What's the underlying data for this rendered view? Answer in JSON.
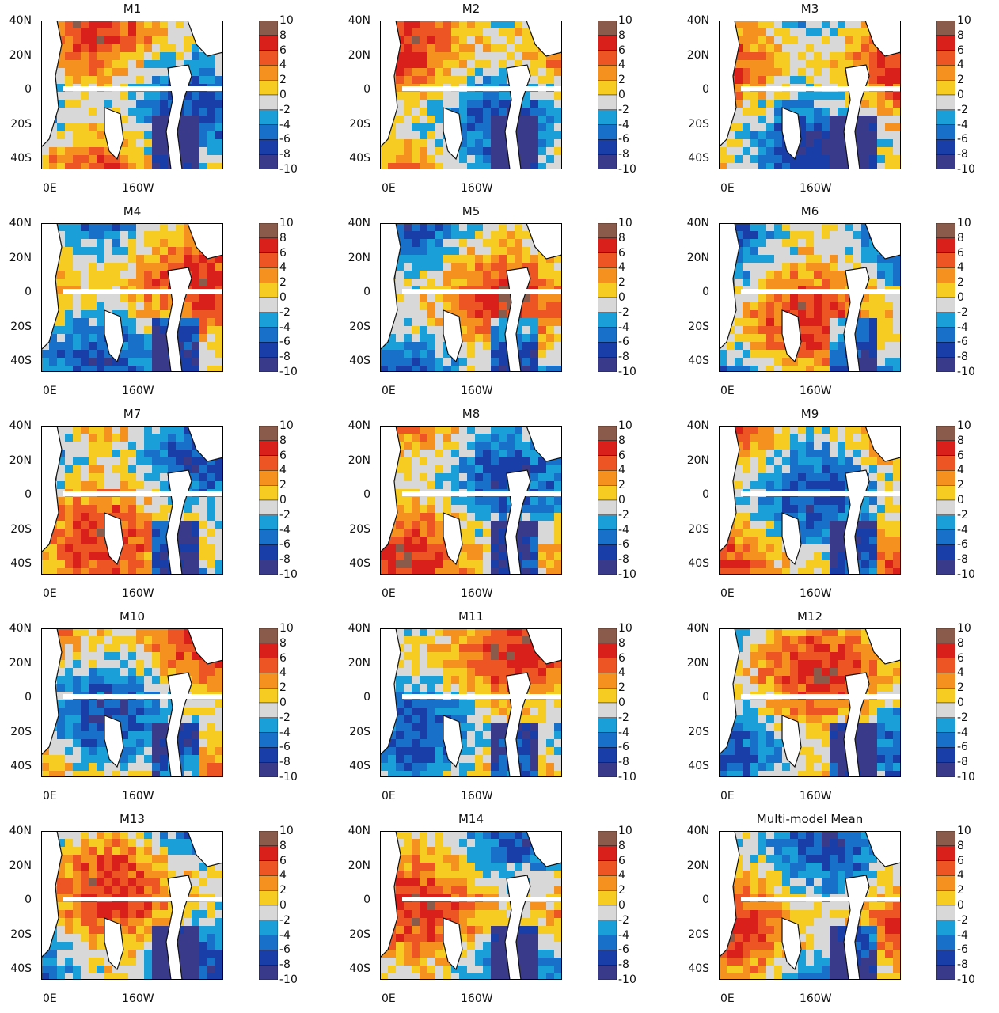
{
  "panels": [
    {
      "title": "M1"
    },
    {
      "title": "M2"
    },
    {
      "title": "M3"
    },
    {
      "title": "M4"
    },
    {
      "title": "M5"
    },
    {
      "title": "M6"
    },
    {
      "title": "M7"
    },
    {
      "title": "M8"
    },
    {
      "title": "M9"
    },
    {
      "title": "M10"
    },
    {
      "title": "M11"
    },
    {
      "title": "M12"
    },
    {
      "title": "M13"
    },
    {
      "title": "M14"
    },
    {
      "title": "Multi-model Mean"
    }
  ],
  "lat_labels": [
    "40N",
    "20N",
    "0",
    "20S",
    "40S"
  ],
  "lon_labels": [
    "0E",
    "160W"
  ],
  "colorbar": {
    "tick_labels": [
      "10",
      "8",
      "6",
      "4",
      "2",
      "0",
      "-2",
      "-4",
      "-6",
      "-8",
      "-10"
    ],
    "colors": [
      "#8a5a4a",
      "#d9201a",
      "#ee5524",
      "#f5921f",
      "#f7cc22",
      "#d8d8d8",
      "#1a9fd8",
      "#1870c8",
      "#1a3ea8",
      "#3a3a8a"
    ]
  },
  "map_colors": {
    "land": "#ffffff",
    "coast": "#111111",
    "equator_band": "#ffffff"
  }
}
